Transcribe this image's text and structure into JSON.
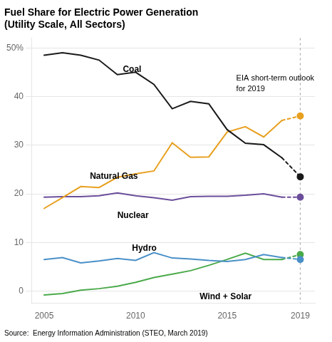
{
  "chart_data": {
    "type": "line",
    "title": "Fuel Share for Electric Power Generation\n(Utility Scale, All Sectors)",
    "source": "Source:  Energy Information Administration (STEO, March 2019)",
    "x": [
      2005,
      2006,
      2007,
      2008,
      2009,
      2010,
      2011,
      2012,
      2013,
      2014,
      2015,
      2016,
      2017,
      2018,
      2019
    ],
    "series": [
      {
        "name": "Coal",
        "color": "#1a1a1a",
        "line_style": "solid",
        "values": [
          48.5,
          49.0,
          48.5,
          47.5,
          44.5,
          45.0,
          42.5,
          37.5,
          39.0,
          38.5,
          33.2,
          30.4,
          30.1,
          27.4,
          null
        ]
      },
      {
        "name": "Natural Gas",
        "color": "#e8a020",
        "line_style": "solid",
        "values": [
          17.0,
          19.2,
          21.5,
          21.3,
          23.4,
          24.1,
          24.7,
          30.5,
          27.5,
          27.6,
          32.7,
          33.8,
          31.7,
          35.1,
          null
        ]
      },
      {
        "name": "Nuclear",
        "color": "#6b4e9b",
        "line_style": "solid",
        "values": [
          19.3,
          19.4,
          19.4,
          19.6,
          20.2,
          19.6,
          19.2,
          18.7,
          19.4,
          19.5,
          19.5,
          19.7,
          20.0,
          19.3,
          null
        ]
      },
      {
        "name": "Hydro",
        "color": "#4a90c8",
        "line_style": "solid",
        "values": [
          6.5,
          6.9,
          5.8,
          6.2,
          6.7,
          6.3,
          7.9,
          6.8,
          6.6,
          6.3,
          6.1,
          6.5,
          7.5,
          6.9,
          null
        ]
      },
      {
        "name": "Wind + Solar",
        "color": "#4aaa4a",
        "line_style": "solid",
        "values": [
          -0.8,
          -0.5,
          0.2,
          0.5,
          1.0,
          1.8,
          2.8,
          3.5,
          4.2,
          5.3,
          6.5,
          7.8,
          6.5,
          6.5,
          null
        ]
      },
      {
        "color": "#1a1a1a",
        "line_style": "dotted",
        "marker": "circle",
        "values": [
          null,
          null,
          null,
          null,
          null,
          null,
          null,
          null,
          null,
          null,
          null,
          null,
          null,
          27.4,
          23.5
        ]
      },
      {
        "color": "#e8a020",
        "line_style": "dotted",
        "marker": "circle",
        "values": [
          null,
          null,
          null,
          null,
          null,
          null,
          null,
          null,
          null,
          null,
          null,
          null,
          null,
          35.1,
          36.0
        ]
      },
      {
        "color": "#6b4e9b",
        "line_style": "dotted",
        "marker": "circle",
        "values": [
          null,
          null,
          null,
          null,
          null,
          null,
          null,
          null,
          null,
          null,
          null,
          null,
          null,
          19.3,
          19.3
        ]
      },
      {
        "color": "#4a90c8",
        "line_style": "dotted",
        "marker": "circle",
        "values": [
          null,
          null,
          null,
          null,
          null,
          null,
          null,
          null,
          null,
          null,
          null,
          null,
          null,
          6.9,
          6.5
        ]
      },
      {
        "color": "#4aaa4a",
        "line_style": "dotted",
        "marker": "circle",
        "values": [
          null,
          null,
          null,
          null,
          null,
          null,
          null,
          null,
          null,
          null,
          null,
          null,
          null,
          6.5,
          7.5
        ]
      }
    ],
    "annotations": [
      {
        "text": "Coal",
        "x": 2009.3,
        "y": 45.5
      },
      {
        "text": "Natural Gas",
        "x": 2007.5,
        "y": 23.5
      },
      {
        "text": "Nuclear",
        "x": 2009.0,
        "y": 15.5
      },
      {
        "text": "Hydro",
        "x": 2009.8,
        "y": 8.8
      },
      {
        "text": "Wind + Solar",
        "x": 2013.5,
        "y": -1.2
      },
      {
        "text": "EIA short-term outlook\nfor 2019",
        "x": 2015.5,
        "y": 44.5
      }
    ],
    "vlines": [
      2019
    ],
    "xlim": [
      2004.3,
      2019.8
    ],
    "xticks": [
      2005,
      2010,
      2015,
      2019
    ],
    "ylim": [
      -2.5,
      52
    ],
    "yticks": [
      0,
      10,
      20,
      30,
      40,
      {
        "value": 50,
        "label": "50%"
      }
    ],
    "grid": "y"
  }
}
